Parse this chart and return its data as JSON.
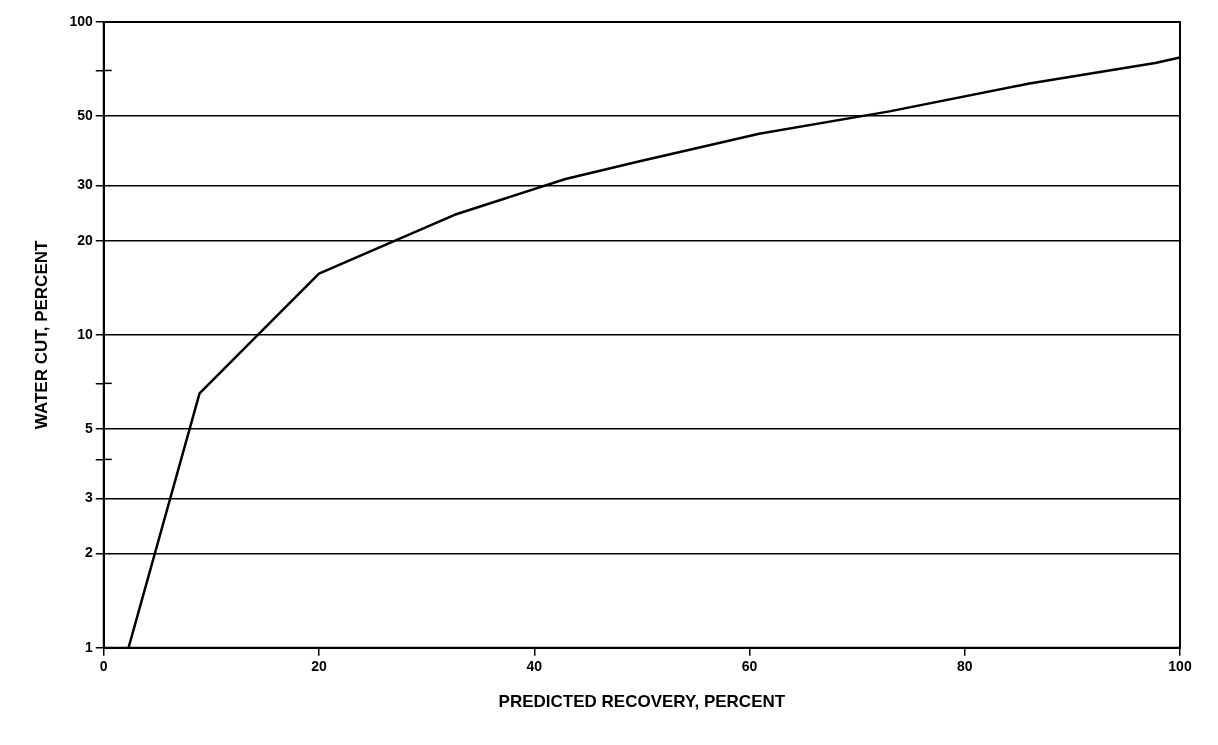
{
  "chart_data": {
    "type": "line",
    "xlabel": "PREDICTED RECOVERY, PERCENT",
    "ylabel": "WATER CUT, PERCENT",
    "log": "y",
    "grid": "y",
    "marker": "none",
    "line_style": "solid",
    "legend": false,
    "xlim": [
      0,
      100
    ],
    "xticks": [
      0,
      20,
      40,
      60,
      80,
      100
    ],
    "ylim": [
      1,
      100
    ],
    "yticks": [
      1,
      2,
      3,
      {
        "value": 4,
        "label": null
      },
      5,
      {
        "value": 7,
        "label": null
      },
      10,
      20,
      30,
      50,
      {
        "value": 70,
        "label": null
      },
      100
    ],
    "series": [
      {
        "color": "#000000",
        "x": [
          2.3,
          8.9,
          20,
          32.6,
          42.9,
          49.7,
          61,
          73,
          86,
          97.7,
          100
        ],
        "values": [
          1,
          6.5,
          15.7,
          24.2,
          31.5,
          35.8,
          44,
          51.8,
          63.6,
          74,
          77
        ]
      }
    ]
  }
}
